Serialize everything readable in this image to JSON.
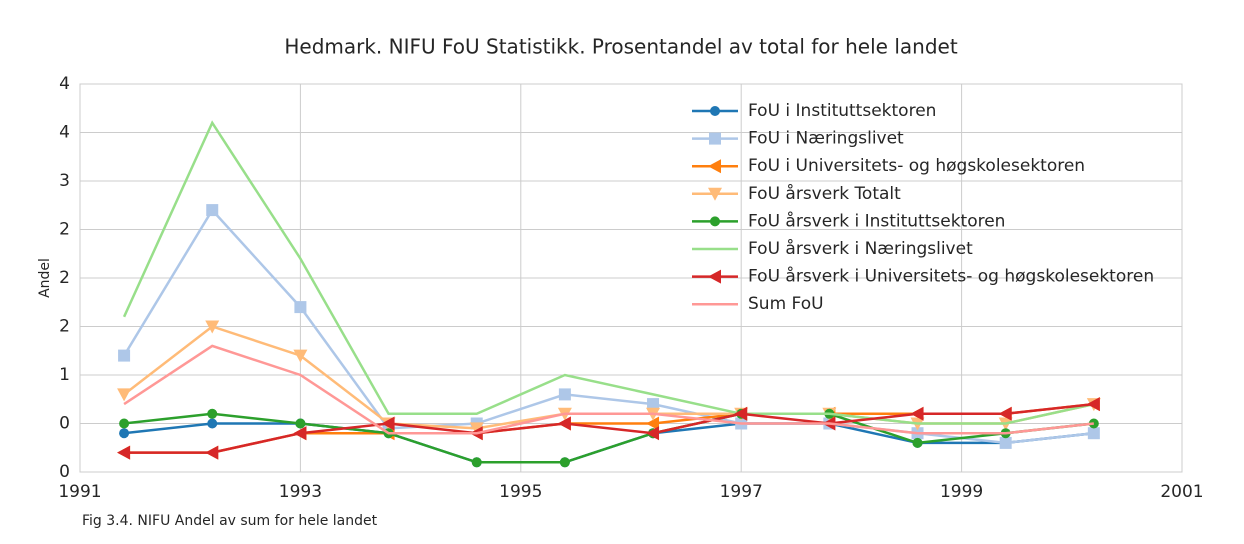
{
  "chart_data": {
    "type": "line",
    "title": "Hedmark. NIFU FoU Statistikk. Prosentandel av total for hele landet",
    "y_label": "Andel",
    "caption": "Fig 3.4. NIFU Andel av sum for hele landet",
    "x": [
      1991.4,
      1992.2,
      1993.0,
      1993.8,
      1994.6,
      1995.4,
      1996.2,
      1997.0,
      1997.8,
      1998.6,
      1999.4,
      2000.2
    ],
    "xlim": [
      1991,
      2001
    ],
    "xticks": [
      1991,
      1993,
      1995,
      1997,
      1999,
      2001
    ],
    "ylim": [
      0,
      4
    ],
    "yticks": [
      {
        "value": 0,
        "label": "0"
      },
      {
        "value": 0.5,
        "label": "0"
      },
      {
        "value": 1,
        "label": "1"
      },
      {
        "value": 1.5,
        "label": "2"
      },
      {
        "value": 2,
        "label": "2"
      },
      {
        "value": 2.5,
        "label": "2"
      },
      {
        "value": 3,
        "label": "3"
      },
      {
        "value": 3.5,
        "label": "4"
      },
      {
        "value": 4,
        "label": "4"
      }
    ],
    "grid": true,
    "legend": "upper right",
    "series": [
      {
        "name": "FoU i Instituttsektoren",
        "color": "#1f77b4",
        "marker": "circle",
        "values": [
          0.4,
          0.5,
          0.5,
          0.4,
          0.1,
          0.1,
          0.4,
          0.5,
          0.5,
          0.3,
          0.3,
          0.4
        ]
      },
      {
        "name": "FoU i Næringslivet",
        "color": "#aec7e8",
        "marker": "square",
        "values": [
          1.2,
          2.7,
          1.7,
          0.45,
          0.5,
          0.8,
          0.7,
          0.5,
          0.5,
          0.4,
          0.3,
          0.4
        ]
      },
      {
        "name": "FoU i Universitets- og høgskolesektoren",
        "color": "#ff7f0e",
        "marker": "triangle-left",
        "values": [
          0.2,
          0.2,
          0.4,
          0.4,
          0.4,
          0.5,
          0.5,
          0.6,
          0.6,
          0.6,
          0.6,
          0.7
        ]
      },
      {
        "name": "FoU årsverk Totalt",
        "color": "#ffbb78",
        "marker": "triangle-down",
        "values": [
          0.8,
          1.5,
          1.2,
          0.5,
          0.45,
          0.6,
          0.6,
          0.6,
          0.6,
          0.5,
          0.5,
          0.7
        ]
      },
      {
        "name": "FoU årsverk i Instituttsektoren",
        "color": "#2ca02c",
        "marker": "circle",
        "values": [
          0.5,
          0.6,
          0.5,
          0.4,
          0.1,
          0.1,
          0.4,
          0.6,
          0.6,
          0.3,
          0.4,
          0.5
        ]
      },
      {
        "name": "FoU årsverk i Næringslivet",
        "color": "#98df8a",
        "values": [
          1.6,
          3.6,
          2.2,
          0.6,
          0.6,
          1.0,
          0.8,
          0.6,
          0.6,
          0.5,
          0.5,
          0.7
        ]
      },
      {
        "name": "FoU årsverk i Universitets- og høgskolesektoren",
        "color": "#d62728",
        "marker": "triangle-left",
        "values": [
          0.2,
          0.2,
          0.4,
          0.5,
          0.4,
          0.5,
          0.4,
          0.6,
          0.5,
          0.6,
          0.6,
          0.7
        ]
      },
      {
        "name": "Sum FoU",
        "color": "#ff9896",
        "values": [
          0.7,
          1.3,
          1.0,
          0.4,
          0.4,
          0.6,
          0.6,
          0.5,
          0.5,
          0.4,
          0.4,
          0.5
        ]
      }
    ]
  }
}
